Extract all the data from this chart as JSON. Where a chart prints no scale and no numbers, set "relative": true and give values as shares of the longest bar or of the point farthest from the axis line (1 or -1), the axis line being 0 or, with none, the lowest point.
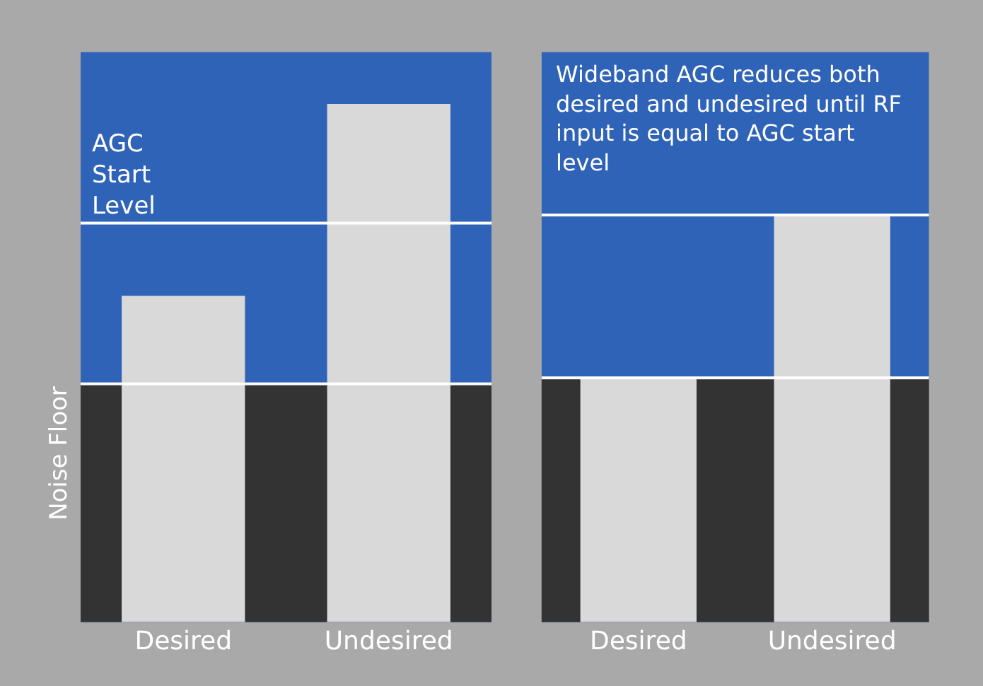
{
  "chart_data": [
    {
      "type": "bar",
      "categories": [
        "Desired",
        "Undesired"
      ],
      "values": [
        0.63,
        1
      ],
      "color": "#d9d9d9",
      "relative": true,
      "ref_lines": [
        {
          "axis": "y",
          "value": 0.77,
          "label": "AGC Start Level",
          "color": "#ffffff"
        },
        {
          "axis": "y",
          "value": 0.46,
          "label": "Noise Floor",
          "color": "#ffffff"
        }
      ],
      "bands": [
        {
          "axis": "y",
          "from": 0,
          "to": 0.46,
          "color": "#333333"
        }
      ]
    },
    {
      "type": "bar",
      "categories": [
        "Desired",
        "Undesired"
      ],
      "values": [
        0.6,
        1
      ],
      "color": "#d9d9d9",
      "relative": true,
      "annotations": [
        "Wideband AGC reduces both desired and undesired until RF input is equal to AGC start level"
      ],
      "ref_lines": [
        {
          "axis": "y",
          "value": 1,
          "label": null,
          "color": "#ffffff"
        },
        {
          "axis": "y",
          "value": 0.6,
          "label": null,
          "color": "#ffffff"
        }
      ],
      "bands": [
        {
          "axis": "y",
          "from": 0,
          "to": 0.6,
          "color": "#333333"
        }
      ]
    }
  ]
}
